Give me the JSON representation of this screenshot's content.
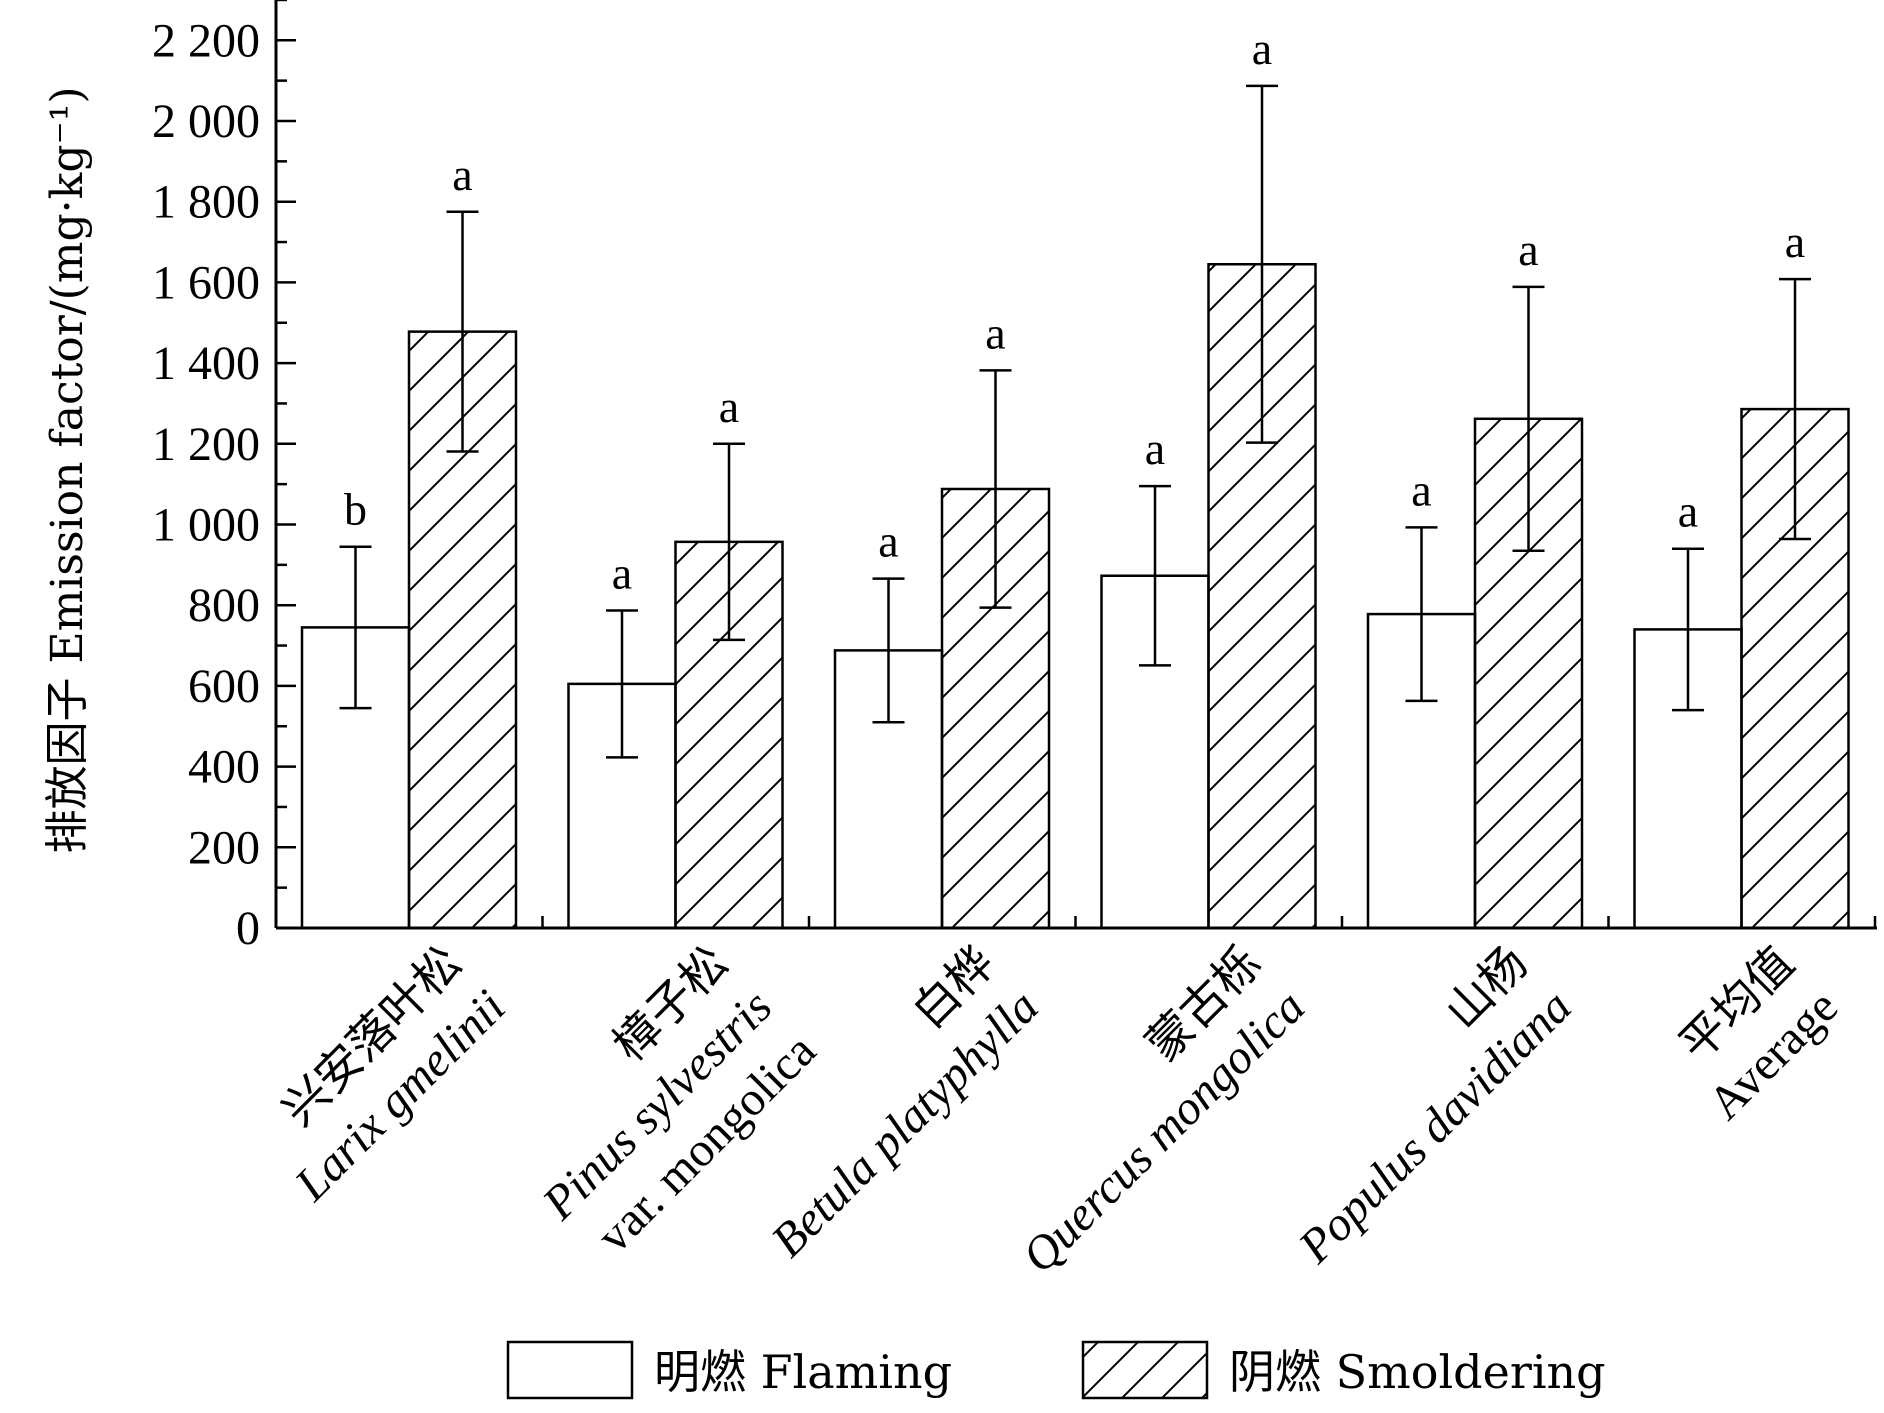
{
  "chart_data": {
    "type": "bar",
    "title": "",
    "xlabel": "",
    "ylabel": "排放因子 Emission factor/(mg·kg⁻¹)",
    "ylim": [
      0,
      2300
    ],
    "yticks": [
      0,
      200,
      400,
      600,
      800,
      1000,
      1200,
      1400,
      1600,
      1800,
      2000,
      2200
    ],
    "ytick_labels": [
      "0",
      "200",
      "400",
      "600",
      "800",
      "1 000",
      "1 200",
      "1 400",
      "1 600",
      "1 800",
      "2 000",
      "2 200"
    ],
    "grid": false,
    "legend_position": "bottom",
    "categories": [
      {
        "zh": "兴安落叶松",
        "latin": [
          "Larix gmelinii"
        ],
        "plain": []
      },
      {
        "zh": "樟子松",
        "latin": [
          "Pinus sylvestris"
        ],
        "plain": [
          "var. mongolica"
        ]
      },
      {
        "zh": "白桦",
        "latin": [
          "Betula platyphylla"
        ],
        "plain": []
      },
      {
        "zh": "蒙古栎",
        "latin": [
          "Quercus mongolica"
        ],
        "plain": []
      },
      {
        "zh": "山杨",
        "latin": [
          "Populus davidiana"
        ],
        "plain": []
      },
      {
        "zh": "平均值",
        "latin": [],
        "plain": [
          "Average"
        ]
      }
    ],
    "series": [
      {
        "name": "明燃  Flaming",
        "pattern": "none",
        "values": [
          745,
          605,
          688,
          873,
          778,
          740
        ],
        "errors": [
          200,
          182,
          178,
          222,
          215,
          200
        ],
        "significance": [
          "b",
          "a",
          "a",
          "a",
          "a",
          "a"
        ]
      },
      {
        "name": "阴燃  Smoldering",
        "pattern": "hatch",
        "values": [
          1478,
          957,
          1088,
          1645,
          1262,
          1286
        ],
        "errors": [
          297,
          243,
          294,
          442,
          327,
          322
        ],
        "significance": [
          "a",
          "a",
          "a",
          "a",
          "a",
          "a"
        ]
      }
    ]
  }
}
